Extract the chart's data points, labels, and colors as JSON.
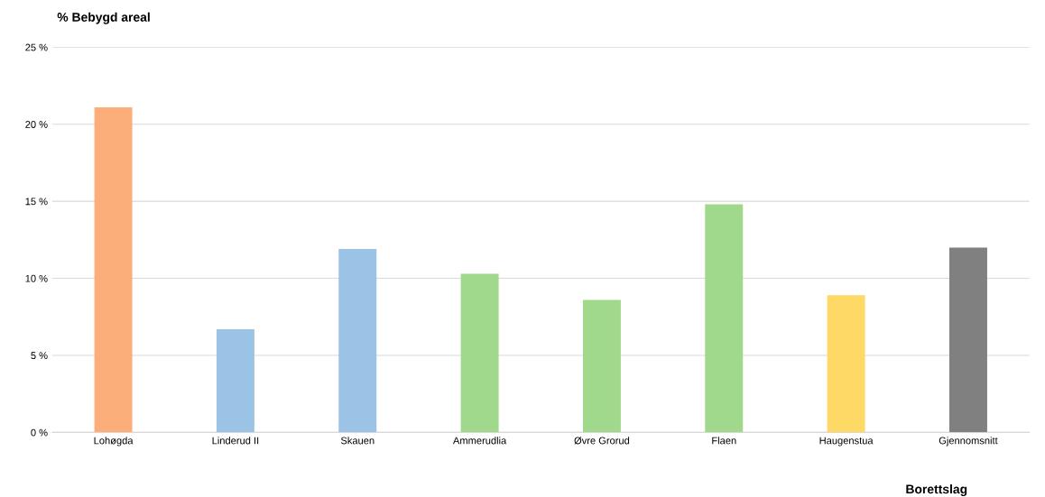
{
  "chart_data": {
    "type": "bar",
    "ylabel": "% Bebygd areal",
    "xlabel": "Borettslag",
    "categories": [
      "Lohøgda",
      "Linderud II",
      "Skauen",
      "Ammerudlia",
      "Øvre Grorud",
      "Flaen",
      "Haugenstua",
      "Gjennomsnitt"
    ],
    "values": [
      21.1,
      6.7,
      11.9,
      10.3,
      8.6,
      14.8,
      8.9,
      12.0
    ],
    "colors": [
      "#fbad7a",
      "#9bc3e6",
      "#9bc3e6",
      "#a0d98b",
      "#a0d98b",
      "#a0d98b",
      "#ffd966",
      "#808080"
    ],
    "ylim": [
      0,
      25
    ],
    "yticks": [
      {
        "value": 0,
        "label": "0 %"
      },
      {
        "value": 5,
        "label": "5 %"
      },
      {
        "value": 10,
        "label": "10 %"
      },
      {
        "value": 15,
        "label": "15 %"
      },
      {
        "value": 20,
        "label": "20 %"
      },
      {
        "value": 25,
        "label": "25 %"
      }
    ],
    "grid": "y",
    "legend": false
  }
}
